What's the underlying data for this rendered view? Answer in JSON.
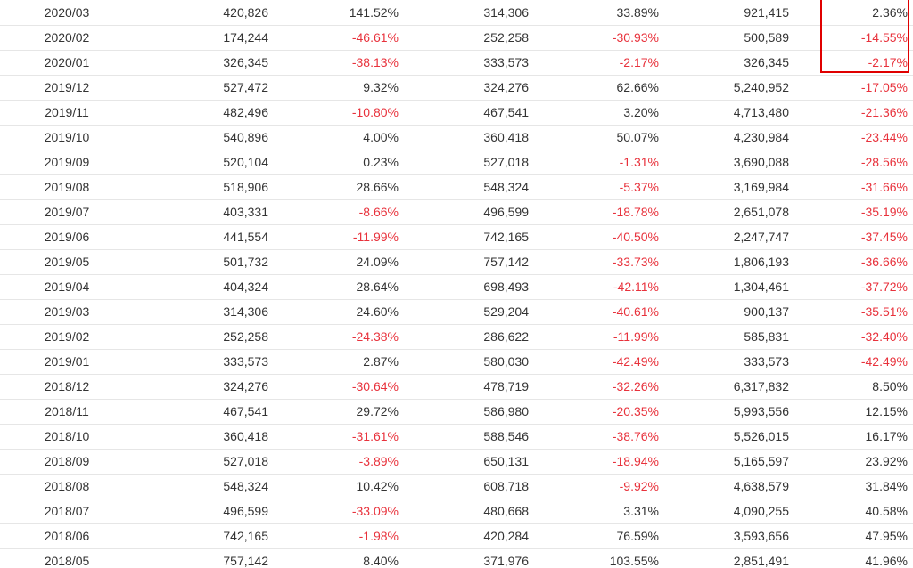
{
  "table": {
    "rows": [
      [
        "2020/03",
        "420,826",
        "141.52%",
        "314,306",
        "33.89%",
        "921,415",
        "2.36%"
      ],
      [
        "2020/02",
        "174,244",
        "-46.61%",
        "252,258",
        "-30.93%",
        "500,589",
        "-14.55%"
      ],
      [
        "2020/01",
        "326,345",
        "-38.13%",
        "333,573",
        "-2.17%",
        "326,345",
        "-2.17%"
      ],
      [
        "2019/12",
        "527,472",
        "9.32%",
        "324,276",
        "62.66%",
        "5,240,952",
        "-17.05%"
      ],
      [
        "2019/11",
        "482,496",
        "-10.80%",
        "467,541",
        "3.20%",
        "4,713,480",
        "-21.36%"
      ],
      [
        "2019/10",
        "540,896",
        "4.00%",
        "360,418",
        "50.07%",
        "4,230,984",
        "-23.44%"
      ],
      [
        "2019/09",
        "520,104",
        "0.23%",
        "527,018",
        "-1.31%",
        "3,690,088",
        "-28.56%"
      ],
      [
        "2019/08",
        "518,906",
        "28.66%",
        "548,324",
        "-5.37%",
        "3,169,984",
        "-31.66%"
      ],
      [
        "2019/07",
        "403,331",
        "-8.66%",
        "496,599",
        "-18.78%",
        "2,651,078",
        "-35.19%"
      ],
      [
        "2019/06",
        "441,554",
        "-11.99%",
        "742,165",
        "-40.50%",
        "2,247,747",
        "-37.45%"
      ],
      [
        "2019/05",
        "501,732",
        "24.09%",
        "757,142",
        "-33.73%",
        "1,806,193",
        "-36.66%"
      ],
      [
        "2019/04",
        "404,324",
        "28.64%",
        "698,493",
        "-42.11%",
        "1,304,461",
        "-37.72%"
      ],
      [
        "2019/03",
        "314,306",
        "24.60%",
        "529,204",
        "-40.61%",
        "900,137",
        "-35.51%"
      ],
      [
        "2019/02",
        "252,258",
        "-24.38%",
        "286,622",
        "-11.99%",
        "585,831",
        "-32.40%"
      ],
      [
        "2019/01",
        "333,573",
        "2.87%",
        "580,030",
        "-42.49%",
        "333,573",
        "-42.49%"
      ],
      [
        "2018/12",
        "324,276",
        "-30.64%",
        "478,719",
        "-32.26%",
        "6,317,832",
        "8.50%"
      ],
      [
        "2018/11",
        "467,541",
        "29.72%",
        "586,980",
        "-20.35%",
        "5,993,556",
        "12.15%"
      ],
      [
        "2018/10",
        "360,418",
        "-31.61%",
        "588,546",
        "-38.76%",
        "5,526,015",
        "16.17%"
      ],
      [
        "2018/09",
        "527,018",
        "-3.89%",
        "650,131",
        "-18.94%",
        "5,165,597",
        "23.92%"
      ],
      [
        "2018/08",
        "548,324",
        "10.42%",
        "608,718",
        "-9.92%",
        "4,638,579",
        "31.84%"
      ],
      [
        "2018/07",
        "496,599",
        "-33.09%",
        "480,668",
        "3.31%",
        "4,090,255",
        "40.58%"
      ],
      [
        "2018/06",
        "742,165",
        "-1.98%",
        "420,284",
        "76.59%",
        "3,593,656",
        "47.95%"
      ],
      [
        "2018/05",
        "757,142",
        "8.40%",
        "371,976",
        "103.55%",
        "2,851,491",
        "41.96%"
      ]
    ]
  },
  "colors": {
    "negative": "#e8323c",
    "text": "#333333",
    "highlight_border": "#e00000",
    "row_divider": "#e6e6e6"
  }
}
